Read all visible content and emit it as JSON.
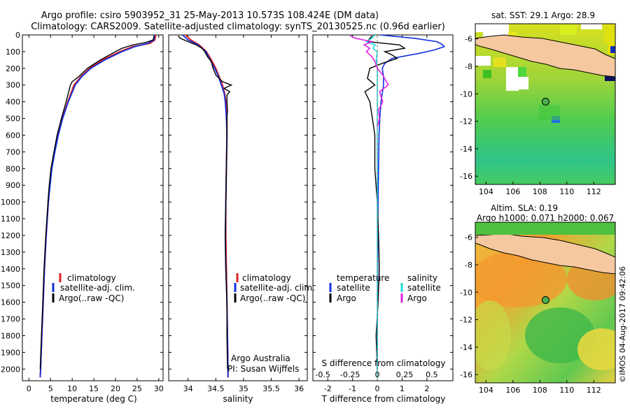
{
  "title_line1": "Argo profile: csiro 5903952_31 25-May-2013 10.573S 108.424E (DM data)",
  "title_line2": "Climatology: CARS2009. Satellite-adjusted climatology: synTS_20130525.nc (0.96d earlier)",
  "colors": {
    "climatology": "#e02020",
    "satellite": "#1030e0",
    "argo": "#000000",
    "salinity_sat": "#20d8d8",
    "salinity_argo": "#e020e0",
    "land": "#f5c8a0"
  },
  "chart_data": [
    {
      "type": "line",
      "id": "temperature",
      "xlabel": "temperature (deg C)",
      "ylabel": "",
      "xlim": [
        -1.5,
        31
      ],
      "ylim": [
        2070,
        0
      ],
      "xticks": [
        0,
        5,
        10,
        15,
        20,
        25,
        30
      ],
      "yticks": [
        0,
        100,
        200,
        300,
        400,
        500,
        600,
        700,
        800,
        900,
        1000,
        1100,
        1200,
        1300,
        1400,
        1500,
        1600,
        1700,
        1800,
        1900,
        2000
      ],
      "legend": [
        "climatology",
        "satellite-adj. clim.",
        "Argo(..raw -QC)"
      ],
      "series": [
        {
          "name": "climatology",
          "depth": [
            0,
            30,
            50,
            70,
            100,
            150,
            200,
            250,
            300,
            400,
            500,
            600,
            700,
            800,
            900,
            1000,
            1200,
            1400,
            1600,
            1800,
            2000,
            2050
          ],
          "values": [
            29.3,
            29.1,
            28.0,
            24.0,
            21.0,
            17.0,
            14.0,
            12.0,
            10.4,
            9.0,
            7.7,
            6.7,
            5.9,
            5.2,
            4.8,
            4.5,
            4.0,
            3.6,
            3.3,
            3.0,
            2.7,
            2.6
          ]
        },
        {
          "name": "satellite-adj. clim.",
          "depth": [
            0,
            30,
            50,
            70,
            100,
            150,
            200,
            250,
            300,
            400,
            500,
            600,
            700,
            800,
            900,
            1000,
            1200,
            1400,
            1600,
            1800,
            2000,
            2050
          ],
          "values": [
            29.0,
            28.9,
            27.5,
            24.5,
            21.5,
            17.5,
            14.3,
            12.2,
            10.7,
            9.1,
            7.8,
            6.8,
            6.0,
            5.3,
            4.9,
            4.5,
            4.0,
            3.6,
            3.3,
            3.0,
            2.7,
            2.6
          ]
        },
        {
          "name": "Argo(..raw -QC)",
          "depth": [
            5,
            30,
            45,
            60,
            80,
            100,
            150,
            200,
            250,
            280,
            300,
            400,
            500,
            600,
            700,
            800,
            900,
            1000,
            1200,
            1400,
            1600,
            1800,
            2000
          ],
          "values": [
            28.9,
            28.7,
            27.0,
            24.0,
            21.5,
            20.0,
            16.5,
            13.5,
            11.5,
            10.0,
            9.6,
            8.6,
            7.5,
            6.5,
            5.8,
            5.1,
            4.7,
            4.4,
            3.9,
            3.5,
            3.2,
            2.9,
            2.6
          ]
        }
      ]
    },
    {
      "type": "line",
      "id": "salinity",
      "xlabel": "salinity",
      "ylabel": "",
      "xlim": [
        33.65,
        36.15
      ],
      "ylim": [
        2070,
        0
      ],
      "xticks": [
        34,
        34.5,
        35,
        35.5,
        36
      ],
      "legend": [
        "climatology",
        "satellite-adj. clim.",
        "Argo(..raw -QC)"
      ],
      "annotation": [
        "Argo Australia",
        "PI: Susan Wijffels"
      ],
      "series": [
        {
          "name": "climatology",
          "depth": [
            0,
            30,
            60,
            100,
            150,
            200,
            250,
            300,
            350,
            400,
            500,
            600,
            800,
            1000,
            1200,
            1400,
            1600,
            1800,
            2000,
            2050
          ],
          "values": [
            33.95,
            34.05,
            34.2,
            34.33,
            34.42,
            34.5,
            34.56,
            34.62,
            34.66,
            34.68,
            34.7,
            34.7,
            34.69,
            34.68,
            34.68,
            34.69,
            34.7,
            34.71,
            34.72,
            34.72
          ]
        },
        {
          "name": "satellite-adj. clim.",
          "depth": [
            0,
            30,
            60,
            100,
            150,
            200,
            250,
            300,
            350,
            400,
            500,
            600,
            800,
            1000,
            1200,
            1400,
            1600,
            1800,
            2000,
            2050
          ],
          "values": [
            33.9,
            34.0,
            34.18,
            34.32,
            34.4,
            34.48,
            34.55,
            34.6,
            34.65,
            34.67,
            34.69,
            34.7,
            34.69,
            34.68,
            34.67,
            34.68,
            34.7,
            34.71,
            34.72,
            34.72
          ]
        },
        {
          "name": "Argo(..raw -QC)",
          "depth": [
            5,
            20,
            40,
            60,
            80,
            100,
            130,
            160,
            200,
            240,
            280,
            300,
            320,
            340,
            360,
            400,
            450,
            500,
            600,
            800,
            1000,
            1200,
            1400,
            1600,
            1800,
            2000
          ],
          "values": [
            33.82,
            33.86,
            34.0,
            34.15,
            34.25,
            34.3,
            34.35,
            34.42,
            34.45,
            34.5,
            34.62,
            34.78,
            34.65,
            34.75,
            34.7,
            34.7,
            34.71,
            34.7,
            34.7,
            34.69,
            34.68,
            34.67,
            34.68,
            34.7,
            34.7,
            34.71
          ]
        }
      ]
    },
    {
      "type": "line",
      "id": "difference",
      "xlabel": "T difference from climatology",
      "xlabel_top": "S difference from climatology",
      "xlim": [
        -2.6,
        3.05
      ],
      "ylim": [
        2070,
        0
      ],
      "xticks": [
        -2,
        -1,
        0,
        1,
        2
      ],
      "xticks_s": [
        -0.5,
        -0.25,
        0,
        0.25,
        0.5
      ],
      "legend_temperature_title": "temperature",
      "legend_salinity_title": "salinity",
      "legend": [
        "satellite",
        "Argo",
        "satellite",
        "Argo"
      ],
      "series": [
        {
          "name": "T satellite",
          "depth": [
            0,
            20,
            40,
            55,
            70,
            90,
            110,
            140,
            170,
            200,
            250,
            300,
            400,
            500,
            600,
            800,
            1000,
            1200,
            1500,
            2000
          ],
          "values": [
            0.1,
            1.5,
            2.4,
            2.6,
            2.7,
            2.3,
            1.7,
            0.6,
            0.3,
            0.2,
            0.25,
            0.25,
            0.15,
            0.1,
            0.07,
            0.05,
            0.03,
            0.02,
            0.01,
            0.0
          ]
        },
        {
          "name": "T Argo",
          "depth": [
            5,
            20,
            40,
            60,
            80,
            100,
            120,
            140,
            170,
            200,
            260,
            300,
            340,
            400,
            500,
            600,
            800,
            1000,
            1200,
            1400,
            1600,
            1800,
            2000
          ],
          "values": [
            -0.2,
            -0.3,
            -0.4,
            0.9,
            1.1,
            0.3,
            0.6,
            0.8,
            0.2,
            -0.3,
            -0.4,
            -0.1,
            -0.5,
            -0.3,
            -0.2,
            -0.1,
            -0.1,
            0.0,
            0.05,
            0.08,
            0.03,
            -0.05,
            0.0
          ]
        },
        {
          "name": "S satellite",
          "depth": [
            0,
            20,
            40,
            60,
            80,
            100,
            150,
            200,
            300,
            400,
            500,
            800,
            1200,
            1600,
            2050
          ],
          "values": [
            -0.02,
            -0.05,
            -0.1,
            -0.02,
            -0.04,
            0.0,
            -0.01,
            0.0,
            0.0,
            0.0,
            0.0,
            0.0,
            0.0,
            0.0,
            0.0
          ]
        },
        {
          "name": "S Argo",
          "depth": [
            5,
            20,
            40,
            60,
            80,
            100,
            130,
            160,
            200,
            240,
            300,
            340,
            400,
            450,
            500,
            550
          ],
          "values": [
            -0.25,
            -0.2,
            -0.05,
            -0.12,
            -0.07,
            -0.1,
            -0.05,
            -0.02,
            0.0,
            0.05,
            0.1,
            0.02,
            0.05,
            0.01,
            0.02,
            0.0
          ]
        }
      ]
    },
    {
      "type": "heatmap",
      "id": "sst_map",
      "title": "sat. SST: 29.1  Argo: 28.9",
      "xlim": [
        103.2,
        113.6
      ],
      "ylim": [
        -16.6,
        -4.9
      ],
      "xticks": [
        104,
        106,
        108,
        110,
        112
      ],
      "yticks": [
        -6,
        -8,
        -10,
        -12,
        -14,
        -16
      ],
      "argo_position": [
        108.424,
        -10.573
      ]
    },
    {
      "type": "heatmap",
      "id": "sla_map",
      "title_line1": "Altim. SLA: 0.19",
      "title_line2": "Argo h1000: 0.071 h2000: 0.067",
      "xlim": [
        103.2,
        113.6
      ],
      "ylim": [
        -16.6,
        -4.9
      ],
      "xticks": [
        104,
        106,
        108,
        110,
        112
      ],
      "yticks": [
        -6,
        -8,
        -10,
        -12,
        -14,
        -16
      ],
      "argo_position": [
        108.424,
        -10.573
      ]
    }
  ],
  "footer_stamp": "©IMOS 04-Aug-2017 09:42:06"
}
